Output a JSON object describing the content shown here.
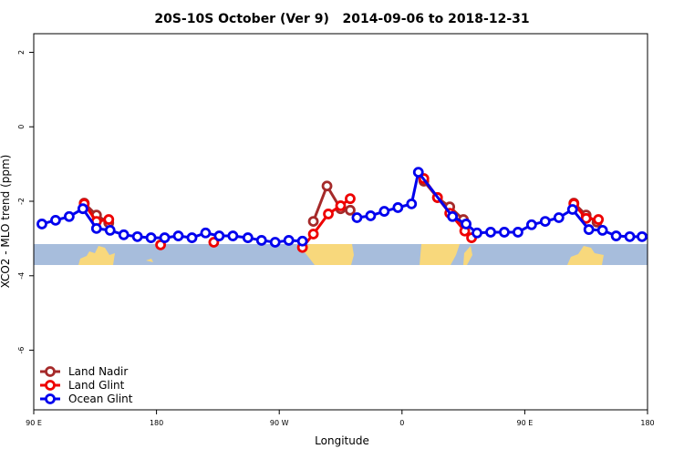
{
  "chart_data": {
    "type": "line",
    "title": "20S-10S October (Ver 9)   2014-09-06 to 2018-12-31",
    "x_label": "Longitude",
    "y_label": "XCO2 - MLO trend (ppm)",
    "xlim": [
      90,
      540
    ],
    "ylim": [
      -7.6,
      2.5
    ],
    "xticks": [
      {
        "value": 90,
        "label": "90 E"
      },
      {
        "value": 180,
        "label": "180"
      },
      {
        "value": 270,
        "label": "90 W"
      },
      {
        "value": 360,
        "label": "0"
      },
      {
        "value": 450,
        "label": "90 E"
      },
      {
        "value": 540,
        "label": "180"
      }
    ],
    "yticks": [
      2,
      0,
      -2,
      -4,
      -6
    ],
    "grid": false,
    "legend": "bottom-left",
    "series": [
      {
        "name": "Land Nadir",
        "color": "#a52a2a",
        "x": [
          127,
          136,
          145,
          null,
          295,
          305,
          315,
          322,
          null,
          376,
          386,
          395,
          405,
          null,
          486,
          495,
          503
        ],
        "values": [
          -2.05,
          -2.37,
          -2.58,
          null,
          -2.54,
          -1.59,
          -2.2,
          -2.24,
          null,
          -1.46,
          -1.9,
          -2.15,
          -2.49,
          null,
          -2.05,
          -2.37,
          -2.56
        ]
      },
      {
        "name": "Land Glint",
        "color": "#ee0000",
        "x": [
          127,
          136,
          145,
          null,
          183,
          null,
          222,
          null,
          287,
          295,
          306,
          315,
          322,
          null,
          376,
          386,
          395,
          406,
          411,
          null,
          486,
          495,
          504
        ],
        "values": [
          -2.07,
          -2.54,
          -2.49,
          null,
          -3.17,
          null,
          -3.1,
          null,
          -3.24,
          -2.88,
          -2.34,
          -2.12,
          -1.93,
          null,
          -1.39,
          -1.9,
          -2.32,
          -2.8,
          -2.98,
          null,
          -2.07,
          -2.46,
          -2.49
        ]
      },
      {
        "name": "Ocean Glint",
        "color": "#0000ee",
        "x": [
          96,
          106,
          116,
          126,
          136,
          146,
          156,
          166,
          176,
          186,
          196,
          206,
          216,
          226,
          236,
          247,
          257,
          267,
          277,
          287,
          null,
          327,
          337,
          347,
          357,
          367,
          372,
          397,
          407,
          415,
          425,
          435,
          445,
          455,
          465,
          475,
          485,
          497,
          507,
          517,
          527,
          536
        ],
        "values": [
          -2.61,
          -2.51,
          -2.41,
          -2.2,
          -2.73,
          -2.78,
          -2.9,
          -2.95,
          -2.98,
          -2.98,
          -2.93,
          -2.98,
          -2.85,
          -2.93,
          -2.93,
          -2.98,
          -3.05,
          -3.1,
          -3.05,
          -3.07,
          null,
          -2.44,
          -2.39,
          -2.27,
          -2.17,
          -2.07,
          -1.22,
          -2.41,
          -2.61,
          -2.85,
          -2.83,
          -2.83,
          -2.83,
          -2.63,
          -2.54,
          -2.44,
          -2.22,
          -2.76,
          -2.78,
          -2.93,
          -2.95,
          -2.95
        ]
      }
    ]
  }
}
